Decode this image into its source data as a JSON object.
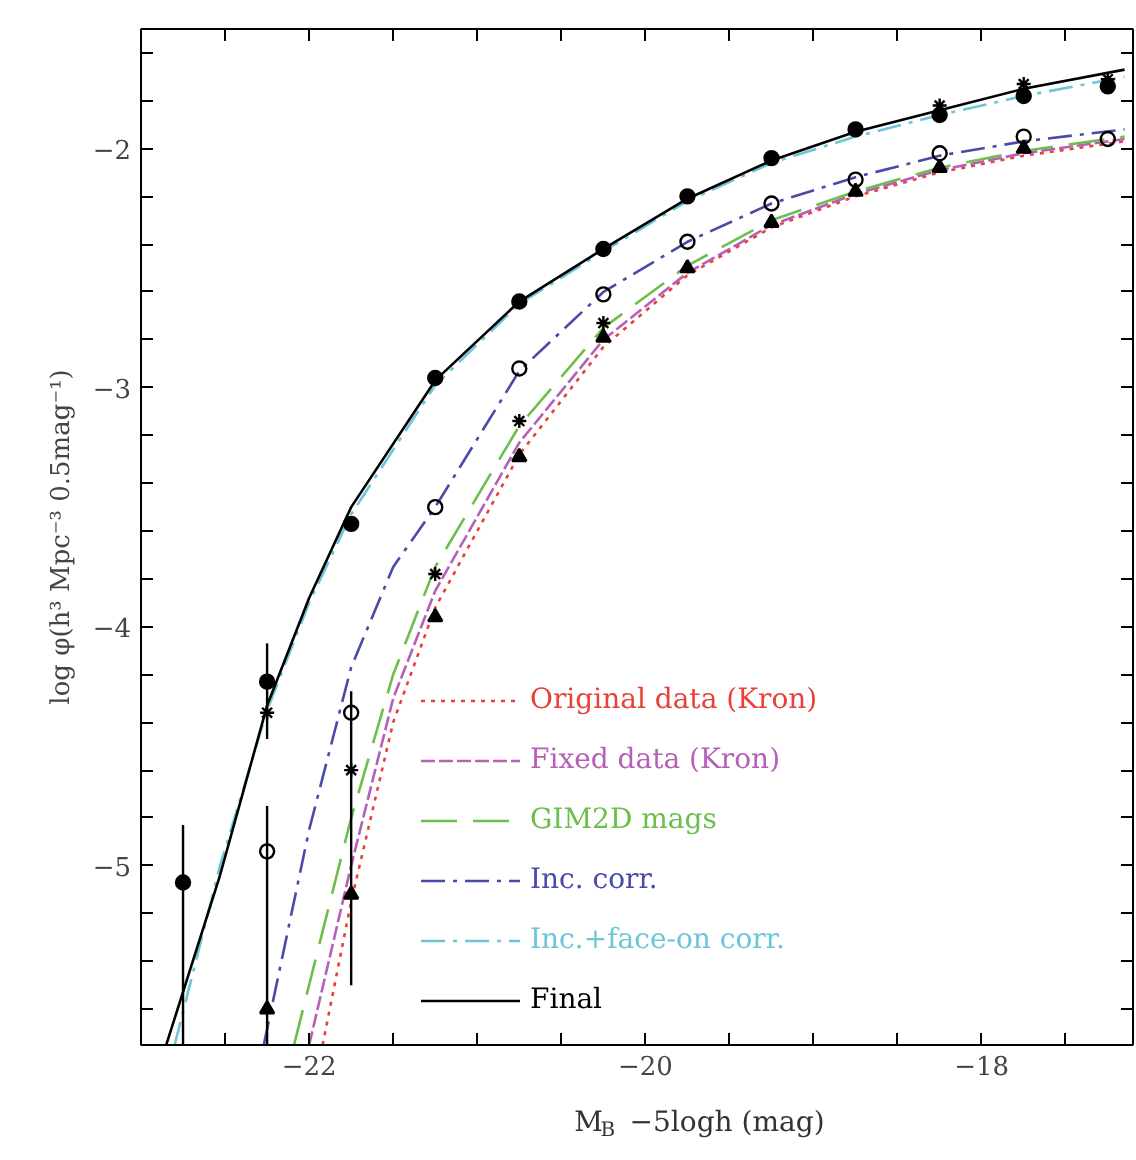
{
  "chart_data": {
    "type": "line",
    "xlabel": "M$_{B}$ −5logh (mag)",
    "ylabel": "log φ(h³ Mpc⁻³ 0.5mag⁻¹)",
    "xlim": [
      -23,
      -17.1
    ],
    "ylim": [
      -5.75,
      -1.5
    ],
    "xticks": [
      {
        "value": -22.5,
        "label": null
      },
      -22,
      {
        "value": -21.5,
        "label": null
      },
      {
        "value": -21,
        "label": null
      },
      {
        "value": -20.5,
        "label": null
      },
      -20,
      {
        "value": -19.5,
        "label": null
      },
      {
        "value": -19,
        "label": null
      },
      {
        "value": -18.5,
        "label": null
      },
      -18,
      {
        "value": -17.5,
        "label": null
      }
    ],
    "yticks": [
      {
        "value": -1.6,
        "label": null
      },
      {
        "value": -1.8,
        "label": null
      },
      -2,
      {
        "value": -2.2,
        "label": null
      },
      {
        "value": -2.4,
        "label": null
      },
      {
        "value": -2.6,
        "label": null
      },
      {
        "value": -2.8,
        "label": null
      },
      -3,
      {
        "value": -3.2,
        "label": null
      },
      {
        "value": -3.4,
        "label": null
      },
      {
        "value": -3.6,
        "label": null
      },
      {
        "value": -3.8,
        "label": null
      },
      -4,
      {
        "value": -4.2,
        "label": null
      },
      {
        "value": -4.4,
        "label": null
      },
      {
        "value": -4.6,
        "label": null
      },
      {
        "value": -4.8,
        "label": null
      },
      -5,
      {
        "value": -5.2,
        "label": null
      },
      {
        "value": -5.4,
        "label": null
      },
      {
        "value": -5.6,
        "label": null
      }
    ],
    "grid": false,
    "legend": "bottom right",
    "series": [
      {
        "name": "Original data (Kron)",
        "color": "#e8413a",
        "line_style": "dotted",
        "marker": "none",
        "x": [
          -21.92,
          -21.75,
          -21.5,
          -21.25,
          -20.75,
          -20.25,
          -19.75,
          -19.25,
          -18.75,
          -18.25,
          -17.75,
          -17.15
        ],
        "values": [
          -5.75,
          -5.15,
          -4.4,
          -3.92,
          -3.28,
          -2.83,
          -2.53,
          -2.33,
          -2.2,
          -2.1,
          -2.03,
          -1.97
        ]
      },
      {
        "name": "Fixed data (Kron)",
        "color": "#b65fb8",
        "line_style": "dashed",
        "marker": "none",
        "x": [
          -22.0,
          -21.75,
          -21.5,
          -21.25,
          -20.75,
          -20.25,
          -19.75,
          -19.25,
          -18.75,
          -18.25,
          -17.75,
          -17.15
        ],
        "values": [
          -5.75,
          -5.0,
          -4.3,
          -3.85,
          -3.23,
          -2.8,
          -2.52,
          -2.32,
          -2.19,
          -2.09,
          -2.02,
          -1.96
        ]
      },
      {
        "name": "GIM2D mags",
        "color": "#6cbf4a",
        "line_style": "longdash",
        "marker": "none",
        "x": [
          -22.09,
          -21.75,
          -21.5,
          -21.25,
          -20.75,
          -20.25,
          -19.75,
          -19.25,
          -18.75,
          -18.25,
          -17.75,
          -17.15
        ],
        "values": [
          -5.75,
          -4.8,
          -4.2,
          -3.75,
          -3.16,
          -2.75,
          -2.49,
          -2.3,
          -2.18,
          -2.08,
          -2.01,
          -1.95
        ]
      },
      {
        "name": "Inc. corr.",
        "color": "#4a4aa8",
        "line_style": "dashdot",
        "marker": "none",
        "x": [
          -22.27,
          -22.0,
          -21.75,
          -21.5,
          -21.25,
          -20.75,
          -20.25,
          -19.75,
          -19.25,
          -18.75,
          -18.25,
          -17.75,
          -17.15
        ],
        "values": [
          -5.75,
          -4.85,
          -4.17,
          -3.75,
          -3.5,
          -2.93,
          -2.6,
          -2.39,
          -2.23,
          -2.12,
          -2.03,
          -1.97,
          -1.92
        ]
      },
      {
        "name": "Inc.+face-on corr.",
        "color": "#6cc6d8",
        "line_style": "dashdot",
        "marker": "none",
        "x": [
          -22.8,
          -22.53,
          -22.25,
          -22.0,
          -21.75,
          -21.25,
          -20.75,
          -20.25,
          -19.75,
          -19.25,
          -18.75,
          -18.25,
          -17.75,
          -17.15
        ],
        "values": [
          -5.75,
          -5.0,
          -4.35,
          -3.9,
          -3.53,
          -2.99,
          -2.65,
          -2.43,
          -2.22,
          -2.06,
          -1.95,
          -1.86,
          -1.78,
          -1.7
        ]
      },
      {
        "name": "Final",
        "color": "#000000",
        "line_style": "solid",
        "marker": "none",
        "x": [
          -22.85,
          -22.53,
          -22.25,
          -22.0,
          -21.75,
          -21.25,
          -20.75,
          -20.25,
          -19.75,
          -19.25,
          -18.75,
          -18.25,
          -17.75,
          -17.15
        ],
        "values": [
          -5.75,
          -5.04,
          -4.33,
          -3.88,
          -3.5,
          -2.97,
          -2.64,
          -2.42,
          -2.21,
          -2.05,
          -1.93,
          -1.84,
          -1.75,
          -1.67
        ]
      },
      {
        "type": "scatter",
        "marker": "circle",
        "color": "#000000",
        "x": [
          -22.75,
          -22.25,
          -21.75,
          -21.25,
          -20.75,
          -20.25,
          -19.75,
          -19.25,
          -18.75,
          -18.25,
          -17.75,
          -17.25
        ],
        "values": [
          -5.07,
          -4.23,
          -3.57,
          -2.96,
          -2.64,
          -2.42,
          -2.2,
          -2.04,
          -1.92,
          -1.86,
          -1.78,
          -1.74
        ],
        "errors": [
          [
            -5.75,
            -4.83
          ],
          [
            -4.47,
            -4.07
          ],
          null,
          null,
          null,
          null,
          null,
          null,
          null,
          null,
          null,
          null
        ]
      },
      {
        "type": "scatter",
        "marker": "open_circle",
        "color": "#000000",
        "x": [
          -22.25,
          -21.75,
          -21.25,
          -20.75,
          -20.25,
          -19.75,
          -19.25,
          -18.75,
          -18.25,
          -17.75,
          -17.25
        ],
        "values": [
          -4.94,
          -4.36,
          -3.5,
          -2.92,
          -2.61,
          -2.39,
          -2.23,
          -2.13,
          -2.02,
          -1.95,
          -1.96
        ],
        "errors": [
          [
            -5.75,
            -4.75
          ],
          [
            -5.5,
            -4.27
          ],
          null,
          null,
          null,
          null,
          null,
          null,
          null,
          null,
          null
        ]
      },
      {
        "type": "scatter",
        "marker": "triangle",
        "color": "#000000",
        "x": [
          -22.25,
          -21.75,
          -21.25,
          -20.75,
          -20.25,
          -19.75,
          -19.25,
          -18.75,
          -18.25,
          -17.75
        ],
        "values": [
          -5.6,
          -5.12,
          -3.96,
          -3.29,
          -2.79,
          -2.5,
          -2.31,
          -2.18,
          -2.08,
          -2.0
        ]
      },
      {
        "type": "scatter",
        "marker": "cross",
        "color": "#000000",
        "x": [
          -22.25,
          -21.75,
          -21.25,
          -20.75,
          -20.25,
          -18.25,
          -17.75,
          -17.25
        ],
        "values": [
          -4.36,
          -4.6,
          -3.78,
          -3.14,
          -2.73,
          -1.82,
          -1.73,
          -1.71
        ]
      }
    ]
  }
}
